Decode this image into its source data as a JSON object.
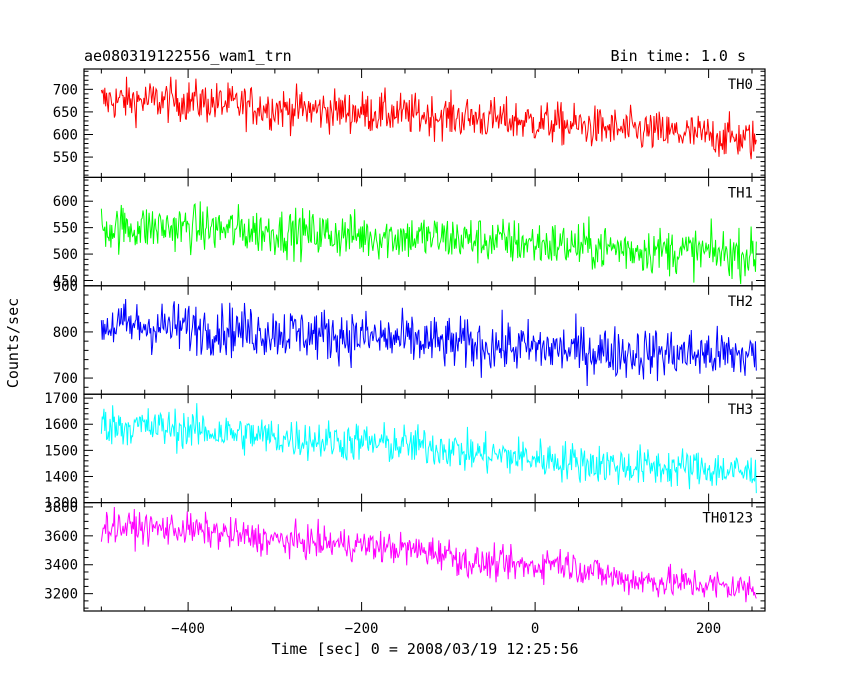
{
  "header": {
    "title": "ae080319122556_wam1_trn",
    "bin_time": "Bin time: 1.0 s"
  },
  "xlabel": "Time [sec] 0 = 2008/03/19 12:25:56",
  "ylabel": "Counts/sec",
  "chart_data": {
    "type": "line",
    "title": "ae080319122556_wam1_trn",
    "xlabel": "Time [sec] 0 = 2008/03/19 12:25:56",
    "ylabel": "Counts/sec",
    "xlim": [
      -520,
      265
    ],
    "x_range": [
      -500,
      255
    ],
    "bin_time_s": 1.0,
    "x_ticks": [
      -400,
      -200,
      0,
      200
    ],
    "x_minor_step": 50,
    "grid": false,
    "legend": "none",
    "panels": [
      {
        "name": "TH0",
        "color": "#ff0000",
        "ylim": [
          505,
          745
        ],
        "y_ticks": [
          550,
          600,
          650,
          700
        ],
        "y_minor_step": 10,
        "trend_x": [
          -500,
          -400,
          -300,
          -200,
          -100,
          0,
          100,
          200,
          255
        ],
        "trend_y": [
          675,
          675,
          658,
          650,
          640,
          628,
          610,
          598,
          588
        ],
        "noise_sd": 23
      },
      {
        "name": "TH1",
        "color": "#00ff00",
        "ylim": [
          440,
          645
        ],
        "y_ticks": [
          450,
          500,
          550,
          600
        ],
        "y_minor_step": 10,
        "trend_x": [
          -500,
          -400,
          -300,
          -200,
          -100,
          0,
          100,
          200,
          255
        ],
        "trend_y": [
          550,
          550,
          542,
          535,
          530,
          520,
          510,
          503,
          498
        ],
        "noise_sd": 22
      },
      {
        "name": "TH2",
        "color": "#0000ff",
        "ylim": [
          665,
          900
        ],
        "y_ticks": [
          700,
          800,
          900
        ],
        "y_minor_step": 20,
        "trend_x": [
          -500,
          -400,
          -300,
          -200,
          -100,
          0,
          100,
          200,
          255
        ],
        "trend_y": [
          815,
          810,
          800,
          790,
          775,
          765,
          755,
          752,
          748
        ],
        "noise_sd": 28
      },
      {
        "name": "TH3",
        "color": "#00ffff",
        "ylim": [
          1300,
          1715
        ],
        "y_ticks": [
          1300,
          1400,
          1500,
          1600,
          1700
        ],
        "y_minor_step": 20,
        "trend_x": [
          -500,
          -400,
          -300,
          -200,
          -100,
          -80,
          0,
          100,
          200,
          255
        ],
        "trend_y": [
          1600,
          1580,
          1550,
          1530,
          1510,
          1490,
          1470,
          1440,
          1430,
          1410
        ],
        "noise_sd": 38
      },
      {
        "name": "TH0123",
        "color": "#ff00ff",
        "ylim": [
          3080,
          3830
        ],
        "y_ticks": [
          3200,
          3400,
          3600,
          3800
        ],
        "y_minor_step": 50,
        "trend_x": [
          -500,
          -400,
          -300,
          -200,
          -100,
          -80,
          0,
          20,
          100,
          200,
          255
        ],
        "trend_y": [
          3665,
          3645,
          3570,
          3535,
          3480,
          3420,
          3385,
          3430,
          3300,
          3260,
          3230
        ],
        "noise_sd": 55
      }
    ]
  }
}
